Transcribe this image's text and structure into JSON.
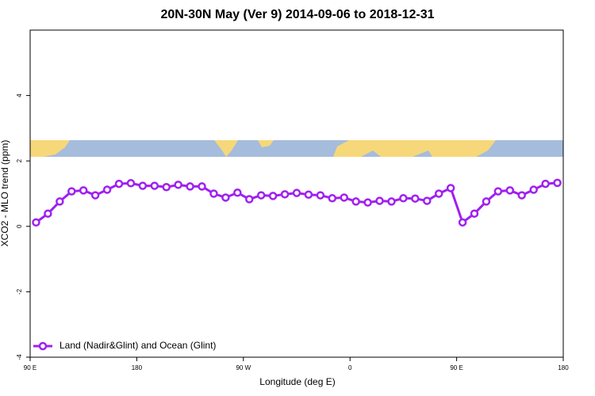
{
  "chart_data": {
    "type": "line",
    "title": "20N-30N May (Ver 9)   2014-09-06 to 2018-12-31",
    "xlabel": "Longitude (deg E)",
    "ylabel": "XCO2 - MLO trend (ppm)",
    "x": [
      95,
      105,
      115,
      125,
      135,
      145,
      155,
      165,
      175,
      185,
      195,
      205,
      215,
      225,
      235,
      245,
      255,
      265,
      275,
      285,
      295,
      305,
      315,
      325,
      335,
      345,
      355,
      365,
      375,
      385,
      395,
      405,
      415,
      425,
      435,
      445,
      455,
      465,
      475,
      485,
      495,
      505,
      515,
      525,
      535
    ],
    "series": [
      {
        "name": "Land (Nadir&Glint) and Ocean (Glint)",
        "color": "#a020f0",
        "values": [
          0.12,
          0.39,
          0.76,
          1.07,
          1.1,
          0.95,
          1.12,
          1.3,
          1.32,
          1.24,
          1.24,
          1.2,
          1.27,
          1.22,
          1.22,
          1.0,
          0.88,
          1.03,
          0.83,
          0.95,
          0.93,
          0.98,
          1.02,
          0.97,
          0.95,
          0.86,
          0.88,
          0.76,
          0.73,
          0.78,
          0.76,
          0.86,
          0.85,
          0.78,
          1.0,
          1.17,
          0.12,
          0.39,
          0.76,
          1.07,
          1.1,
          0.95,
          1.12,
          1.3,
          1.33
        ]
      }
    ],
    "xlim": [
      90,
      540
    ],
    "xticks": [
      {
        "value": 90,
        "label": "90 E"
      },
      180,
      {
        "value": 270,
        "label": "90 W"
      },
      {
        "value": 360,
        "label": "0"
      },
      {
        "value": 450,
        "label": "90 E"
      },
      {
        "value": 540,
        "label": "180"
      }
    ],
    "ylim": [
      -4,
      6
    ],
    "yticks": [
      -4,
      -2,
      0,
      2,
      4
    ],
    "grid": false,
    "legend": "bottomleft"
  }
}
